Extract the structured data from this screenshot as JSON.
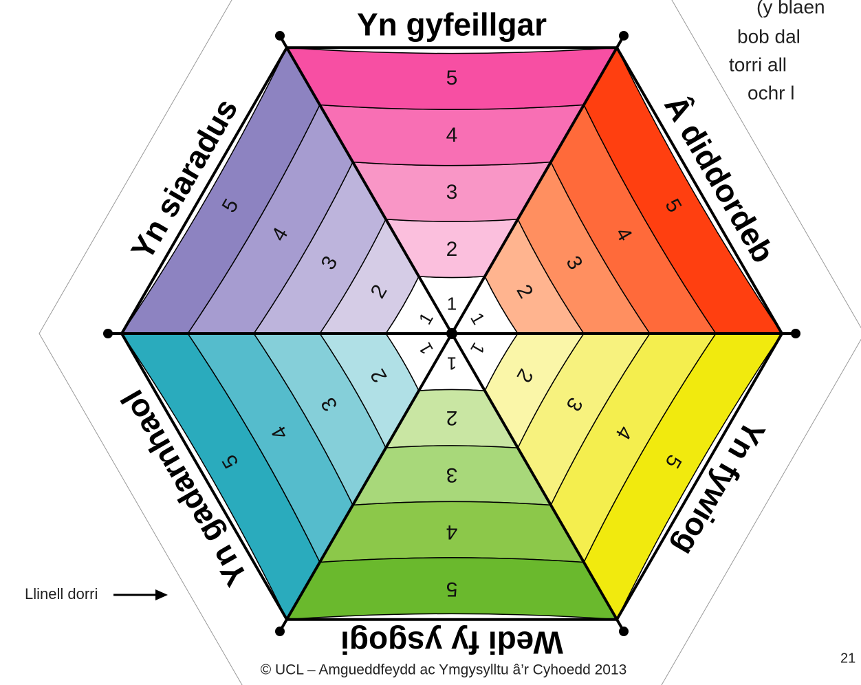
{
  "levels": [
    1,
    2,
    3,
    4,
    5
  ],
  "sectors": [
    {
      "label": "Yn gyfeillgar",
      "colors": [
        "#ffffff",
        "#fbbfdd",
        "#f996c6",
        "#f86fb4",
        "#f74fa3"
      ]
    },
    {
      "label": "Â diddordeb",
      "colors": [
        "#ffffff",
        "#ffb48f",
        "#ff8f60",
        "#ff6a3a",
        "#ff3f10"
      ]
    },
    {
      "label": "Yn fywiog",
      "colors": [
        "#ffffff",
        "#faf6a8",
        "#f7f27e",
        "#f4ee4e",
        "#f1ea0e"
      ]
    },
    {
      "label": "Wedi fy ysgogi",
      "colors": [
        "#ffffff",
        "#c9e6a3",
        "#a8d87a",
        "#8cc84a",
        "#6ab92d"
      ]
    },
    {
      "label": "Yn gadarnhaol",
      "colors": [
        "#ffffff",
        "#b0e0e6",
        "#85cfd9",
        "#55bccc",
        "#2aabbd"
      ]
    },
    {
      "label": "Yn siaradus",
      "colors": [
        "#ffffff",
        "#d5cce6",
        "#bdb4dc",
        "#a69cd0",
        "#8d83c1"
      ]
    }
  ],
  "cut_line_label": "Llinell dorri",
  "copyright": "© UCL – Amgueddfeydd ac Ymgysylltu â’r Cyhoedd 2013",
  "side_note": [
    "(y blaen",
    "bob dal",
    "torri all",
    "ochr l"
  ],
  "page_number": "21"
}
